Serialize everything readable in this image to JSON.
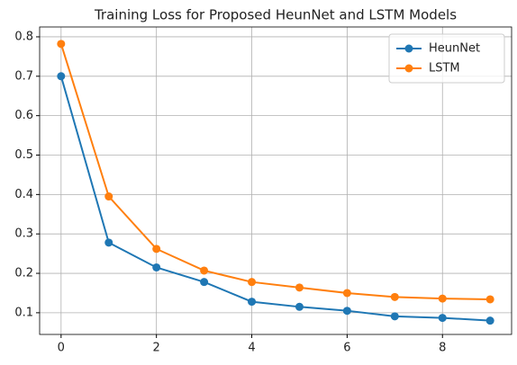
{
  "chart_data": {
    "type": "line",
    "title": "Training Loss for Proposed HeunNet and LSTM Models",
    "x": [
      0,
      1,
      2,
      3,
      4,
      5,
      6,
      7,
      8,
      9
    ],
    "series": [
      {
        "name": "HeunNet",
        "color": "#1f77b4",
        "values": [
          0.7,
          0.278,
          0.215,
          0.178,
          0.128,
          0.115,
          0.105,
          0.091,
          0.087,
          0.08
        ]
      },
      {
        "name": "LSTM",
        "color": "#ff7f0e",
        "values": [
          0.782,
          0.395,
          0.262,
          0.207,
          0.178,
          0.164,
          0.15,
          0.14,
          0.136,
          0.134
        ]
      }
    ],
    "xlim": [
      -0.45,
      9.45
    ],
    "xticks": [
      0,
      2,
      4,
      6,
      8
    ],
    "ylim": [
      0.045,
      0.825
    ],
    "yticks": [
      0.1,
      0.2,
      0.3,
      0.4,
      0.5,
      0.6,
      0.7,
      0.8
    ],
    "grid": true,
    "legend": "upper right"
  }
}
